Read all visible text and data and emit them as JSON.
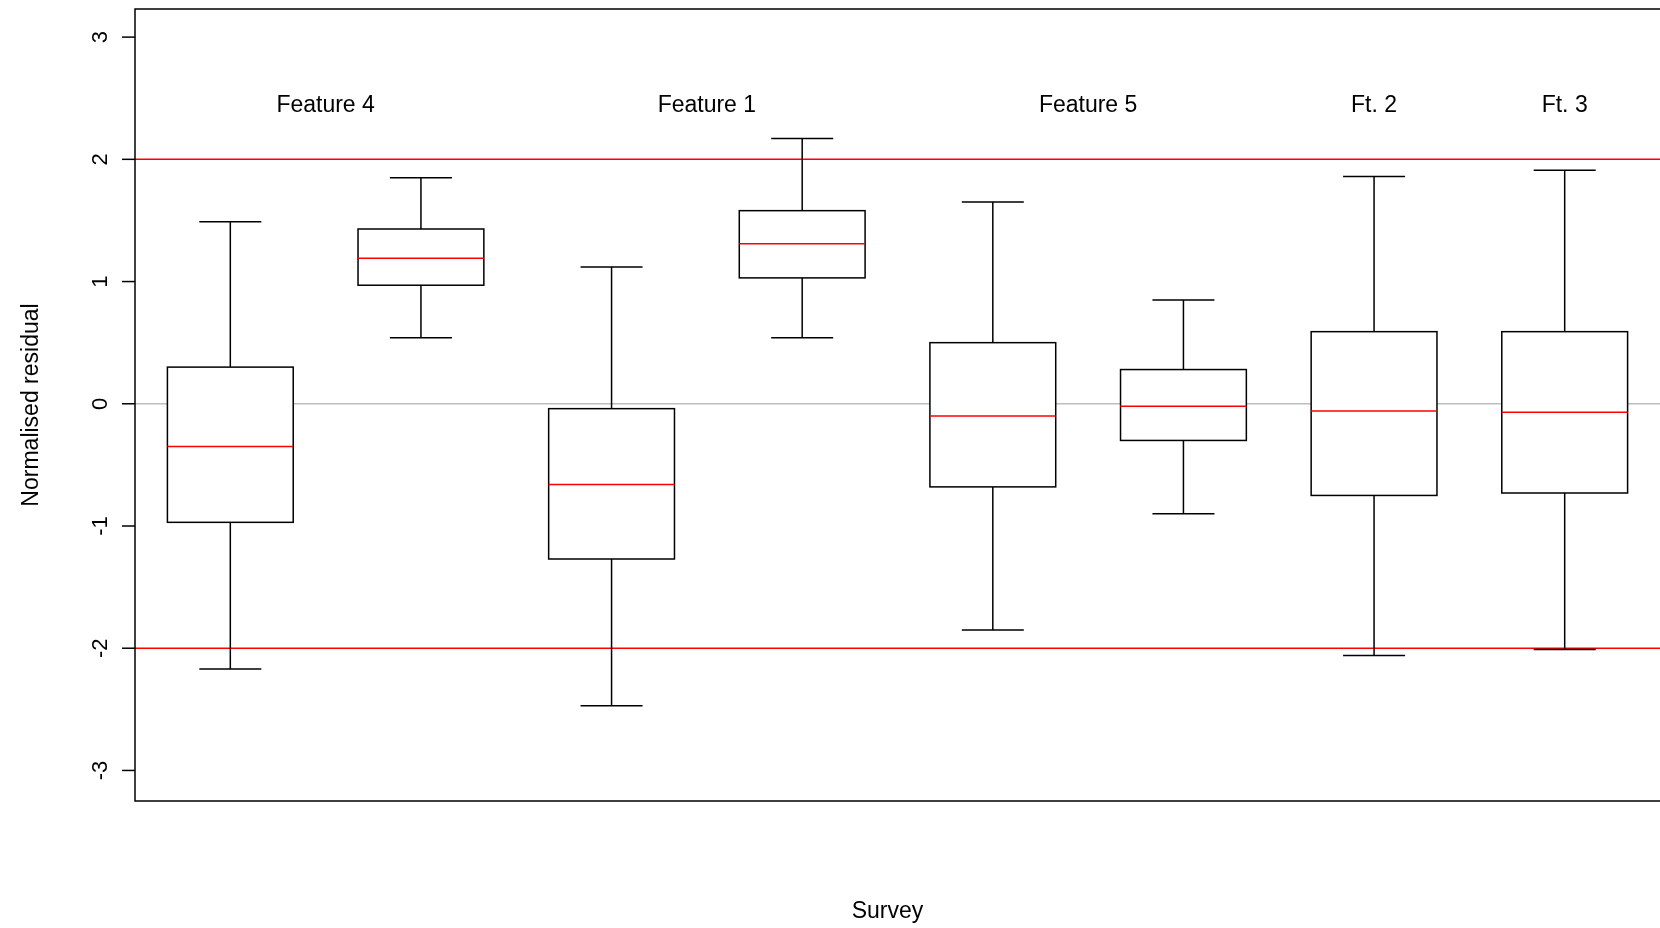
{
  "chart_data": {
    "type": "box",
    "xlabel": "Survey",
    "ylabel": "Normalised residual",
    "categories": [
      null,
      null,
      null,
      null,
      null,
      null,
      null,
      null
    ],
    "series": [
      {
        "color": "#000000",
        "boxes": [
          {
            "low": -2.17,
            "q1": -0.97,
            "median": -0.35,
            "q3": 0.3,
            "high": 1.49
          },
          {
            "low": 0.54,
            "q1": 0.97,
            "median": 1.19,
            "q3": 1.43,
            "high": 1.85
          },
          {
            "low": -2.47,
            "q1": -1.27,
            "median": -0.66,
            "q3": -0.04,
            "high": 1.12
          },
          {
            "low": 0.54,
            "q1": 1.03,
            "median": 1.31,
            "q3": 1.58,
            "high": 2.17
          },
          {
            "low": -1.85,
            "q1": -0.68,
            "median": -0.1,
            "q3": 0.5,
            "high": 1.65
          },
          {
            "low": -0.9,
            "q1": -0.3,
            "median": -0.02,
            "q3": 0.28,
            "high": 0.85
          },
          {
            "low": -2.06,
            "q1": -0.75,
            "median": -0.06,
            "q3": 0.59,
            "high": 1.86
          },
          {
            "low": -2.01,
            "q1": -0.73,
            "median": -0.07,
            "q3": 0.59,
            "high": 1.91
          }
        ]
      }
    ],
    "ylim": [
      -3.25,
      3.23
    ],
    "yticks": [
      -3,
      -2,
      -1,
      0,
      1,
      2,
      3
    ],
    "ref_lines": [
      {
        "axis": "y",
        "value": 2,
        "color": "#ff0000"
      },
      {
        "axis": "y",
        "value": -2,
        "color": "#ff0000"
      },
      {
        "axis": "y",
        "value": 0,
        "color": "#bebebe"
      }
    ],
    "annotations": [
      "Feature 4",
      "Feature 1",
      "Feature 5",
      "Ft. 2",
      "Ft. 3"
    ],
    "tick_labels": "y",
    "grid": false
  }
}
